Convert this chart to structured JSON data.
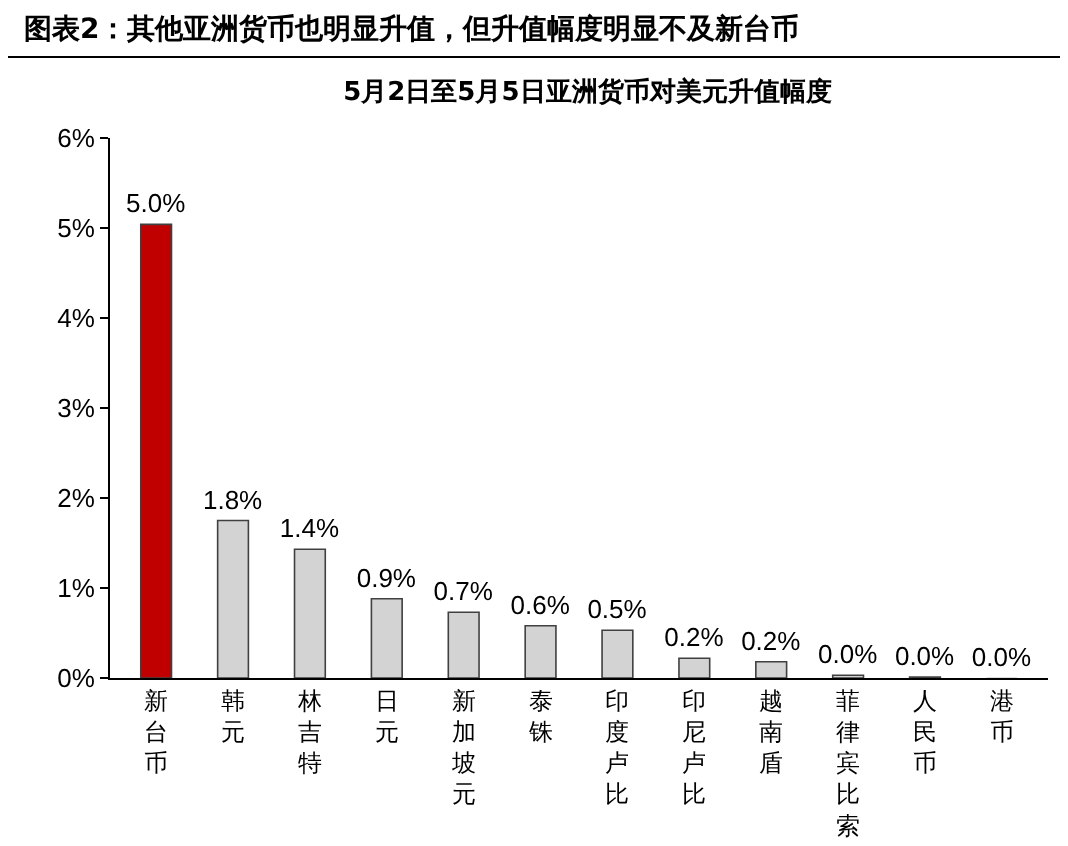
{
  "chart_data": {
    "type": "bar",
    "title": "图表2：其他亚洲货币也明显升值，但升值幅度明显不及新台币",
    "subtitle": "5月2日至5月5日亚洲货币对美元升值幅度",
    "categories": [
      "新台币",
      "韩元",
      "林吉特",
      "日元",
      "新加坡元",
      "泰铢",
      "印度卢比",
      "印尼卢比",
      "越南盾",
      "菲律宾比索",
      "人民币",
      "港币"
    ],
    "values": [
      5.04,
      1.75,
      1.43,
      0.88,
      0.73,
      0.58,
      0.53,
      0.22,
      0.18,
      0.03,
      0.01,
      0.0
    ],
    "colors": [
      "#c00000",
      "#d3d3d3",
      "#d3d3d3",
      "#d3d3d3",
      "#d3d3d3",
      "#d3d3d3",
      "#d3d3d3",
      "#d3d3d3",
      "#d3d3d3",
      "#d3d3d3",
      "#d3d3d3",
      "#d3d3d3"
    ],
    "value_labels": [
      "5.0%",
      "1.8%",
      "1.4%",
      "0.9%",
      "0.7%",
      "0.6%",
      "0.5%",
      "0.2%",
      "0.2%",
      "0.0%",
      "0.0%",
      "0.0%"
    ],
    "ylim": [
      0,
      6
    ],
    "yticks": [
      {
        "value": 0,
        "label": "0%"
      },
      {
        "value": 1,
        "label": "1%"
      },
      {
        "value": 2,
        "label": "2%"
      },
      {
        "value": 3,
        "label": "3%"
      },
      {
        "value": 4,
        "label": "4%"
      },
      {
        "value": 5,
        "label": "5%"
      },
      {
        "value": 6,
        "label": "6%"
      }
    ],
    "grid": false
  }
}
